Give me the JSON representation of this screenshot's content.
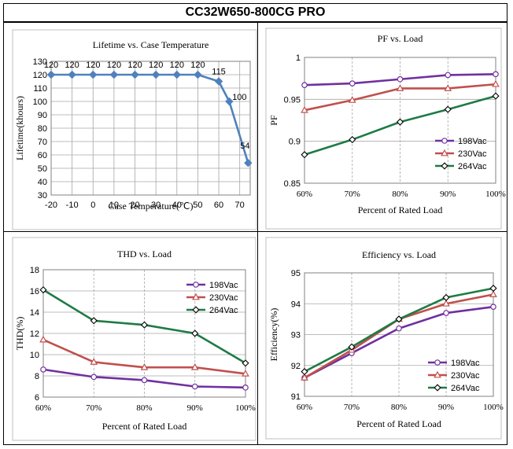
{
  "title": "CC32W650-800CG PRO",
  "colors": {
    "purple": "#7030A0",
    "red": "#C0504D",
    "green": "#1E7B45",
    "blue": "#4F81BD",
    "grid": "#A6A6A6"
  },
  "chart_data": [
    {
      "id": "lifetime",
      "type": "line",
      "title": "Lifetime vs. Case Temperature",
      "xlabel": "Case Temperature(℃)",
      "ylabel": "Lifetime(khours)",
      "x": [
        -20,
        -10,
        0,
        10,
        20,
        30,
        40,
        50,
        60,
        65,
        74
      ],
      "xticks": [
        -20,
        -10,
        0,
        10,
        20,
        30,
        40,
        50,
        60,
        70
      ],
      "xlim": [
        -20,
        75
      ],
      "ylim": [
        30,
        130
      ],
      "yticks": [
        30,
        40,
        50,
        60,
        70,
        80,
        90,
        100,
        110,
        120,
        130
      ],
      "series": [
        {
          "name": "Lifetime",
          "color": "#4F81BD",
          "marker": "diamond-filled",
          "values": [
            120,
            120,
            120,
            120,
            120,
            120,
            120,
            120,
            115,
            100,
            54
          ],
          "labels": [
            "120",
            "120",
            "120",
            "120",
            "120",
            "120",
            "120",
            "120",
            "115",
            "100",
            "54"
          ]
        }
      ],
      "legend": false
    },
    {
      "id": "pf",
      "type": "line",
      "title": "PF vs. Load",
      "xlabel": "Percent of Rated Load",
      "ylabel": "PF",
      "categories": [
        "60%",
        "70%",
        "80%",
        "90%",
        "100%"
      ],
      "ylim": [
        0.85,
        1
      ],
      "yticks": [
        0.85,
        0.9,
        0.95,
        1
      ],
      "ytick_labels": [
        "0.85",
        "0.9",
        "0.95",
        "1"
      ],
      "series": [
        {
          "name": "198Vac",
          "color": "#7030A0",
          "marker": "circle",
          "values": [
            0.967,
            0.969,
            0.974,
            0.979,
            0.98
          ]
        },
        {
          "name": "230Vac",
          "color": "#C0504D",
          "marker": "triangle",
          "values": [
            0.937,
            0.949,
            0.963,
            0.963,
            0.968
          ]
        },
        {
          "name": "264Vac",
          "color": "#1E7B45",
          "marker": "diamond",
          "values": [
            0.884,
            0.902,
            0.923,
            0.938,
            0.954
          ]
        }
      ],
      "legend": "center-right"
    },
    {
      "id": "thd",
      "type": "line",
      "title": "THD vs. Load",
      "xlabel": "Percent of Rated Load",
      "ylabel": "THD(%)",
      "categories": [
        "60%",
        "70%",
        "80%",
        "90%",
        "100%"
      ],
      "ylim": [
        6,
        18
      ],
      "yticks": [
        6,
        8,
        10,
        12,
        14,
        16,
        18
      ],
      "series": [
        {
          "name": "198Vac",
          "color": "#7030A0",
          "marker": "circle",
          "values": [
            8.6,
            7.9,
            7.6,
            7.0,
            6.9
          ]
        },
        {
          "name": "230Vac",
          "color": "#C0504D",
          "marker": "triangle",
          "values": [
            11.4,
            9.3,
            8.8,
            8.8,
            8.2
          ]
        },
        {
          "name": "264Vac",
          "color": "#1E7B45",
          "marker": "diamond",
          "values": [
            16.1,
            13.2,
            12.8,
            12.0,
            9.2
          ]
        }
      ],
      "legend": "top-right"
    },
    {
      "id": "eff",
      "type": "line",
      "title": "Efficiency vs. Load",
      "xlabel": "Percent of Rated Load",
      "ylabel": "Efficiency(%)",
      "categories": [
        "60%",
        "70%",
        "80%",
        "90%",
        "100%"
      ],
      "ylim": [
        91,
        95
      ],
      "yticks": [
        91,
        92,
        93,
        94,
        95
      ],
      "series": [
        {
          "name": "198Vac",
          "color": "#7030A0",
          "marker": "circle",
          "values": [
            91.6,
            92.4,
            93.2,
            93.7,
            93.9
          ]
        },
        {
          "name": "230Vac",
          "color": "#C0504D",
          "marker": "triangle",
          "values": [
            91.6,
            92.5,
            93.5,
            94.0,
            94.3
          ]
        },
        {
          "name": "264Vac",
          "color": "#1E7B45",
          "marker": "diamond",
          "values": [
            91.8,
            92.6,
            93.5,
            94.2,
            94.5
          ]
        }
      ],
      "legend": "bottom-right"
    }
  ]
}
